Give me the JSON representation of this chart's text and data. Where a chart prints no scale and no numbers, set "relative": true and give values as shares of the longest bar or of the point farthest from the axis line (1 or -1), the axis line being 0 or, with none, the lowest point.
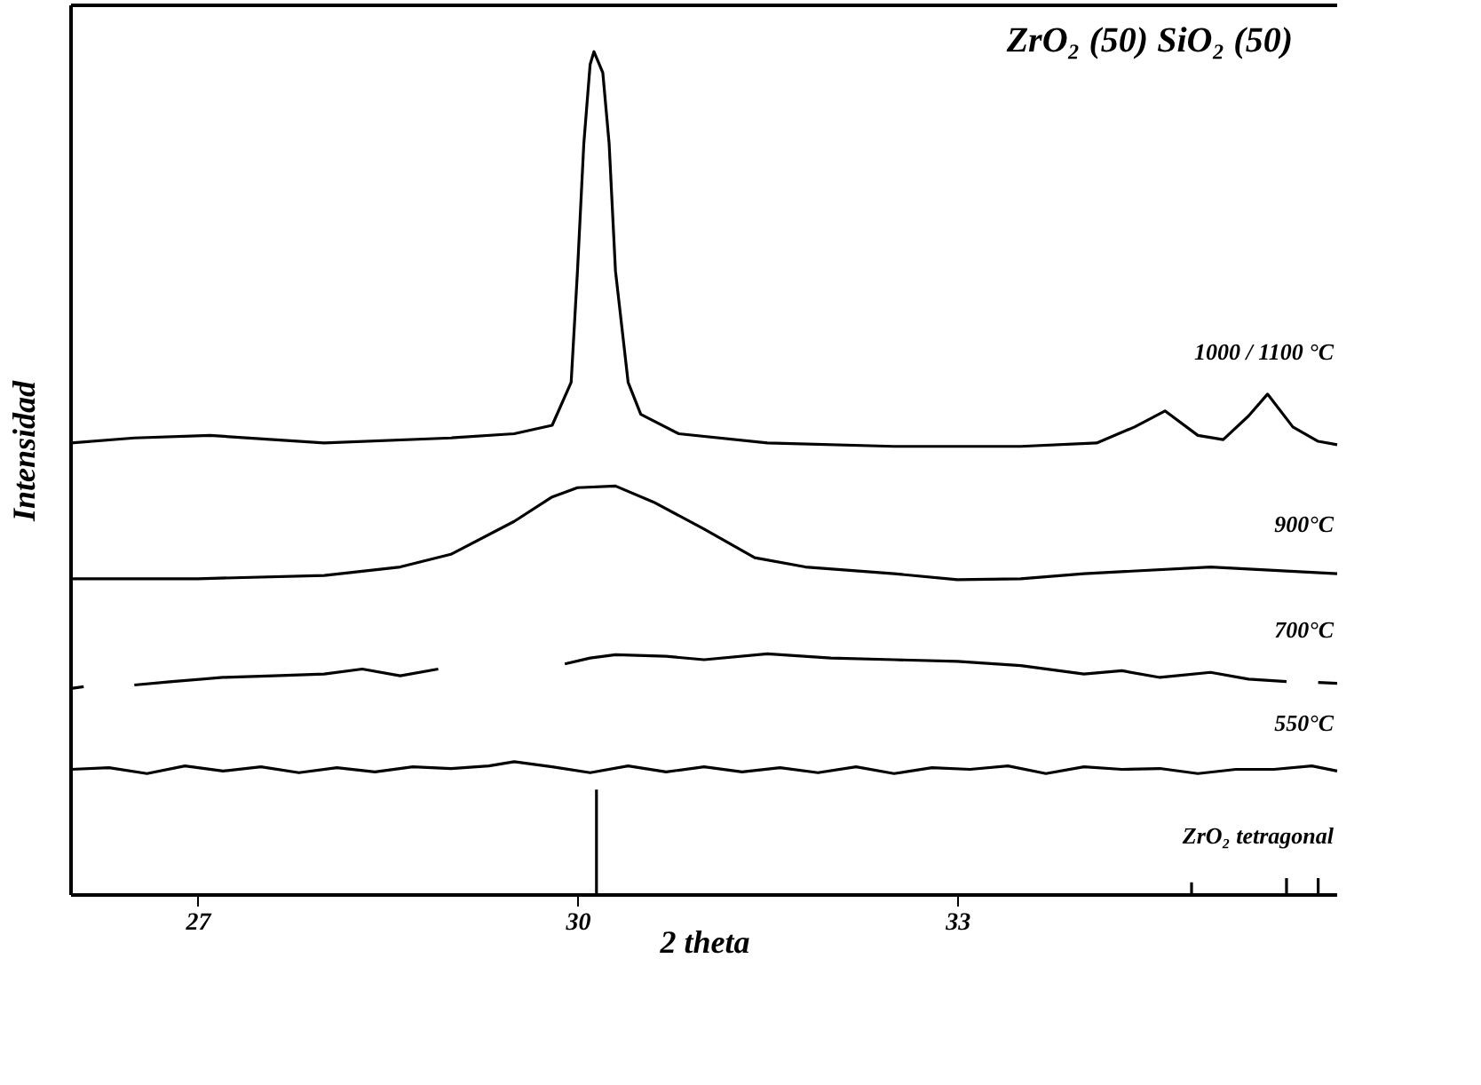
{
  "chart_data": {
    "type": "line",
    "title": "ZrO₂ (50) SiO₂ (50)",
    "xlabel": "2 theta",
    "ylabel": "Intensidad",
    "relative": true,
    "xlim": [
      26,
      36
    ],
    "xticks": [
      27,
      30,
      33
    ],
    "grid": false,
    "line_style": "solid",
    "marker": "none",
    "series": [
      {
        "name": "1000 / 1100 °C",
        "color": "#000000",
        "x": [
          26.0,
          26.5,
          27.1,
          28.0,
          29.0,
          29.5,
          29.8,
          29.95,
          30.0,
          30.05,
          30.1,
          30.13,
          30.2,
          30.25,
          30.3,
          30.4,
          30.5,
          30.8,
          31.5,
          32.5,
          33.5,
          34.1,
          34.4,
          34.64,
          34.9,
          35.1,
          35.3,
          35.45,
          35.65,
          35.85,
          36.0
        ],
        "values": [
          0.536,
          0.542,
          0.545,
          0.536,
          0.542,
          0.547,
          0.557,
          0.608,
          0.74,
          0.891,
          0.985,
          1.0,
          0.975,
          0.891,
          0.74,
          0.608,
          0.57,
          0.547,
          0.536,
          0.532,
          0.532,
          0.536,
          0.555,
          0.574,
          0.545,
          0.54,
          0.568,
          0.594,
          0.555,
          0.538,
          0.534
        ]
      },
      {
        "name": "900°C",
        "color": "#000000",
        "x": [
          26.0,
          27.0,
          28.0,
          28.6,
          29.0,
          29.5,
          29.8,
          30.0,
          30.3,
          30.6,
          31.0,
          31.4,
          31.8,
          32.5,
          33.0,
          33.5,
          34.0,
          35.0,
          35.5,
          36.0
        ],
        "values": [
          0.375,
          0.375,
          0.379,
          0.389,
          0.404,
          0.443,
          0.472,
          0.483,
          0.485,
          0.466,
          0.434,
          0.4,
          0.389,
          0.381,
          0.374,
          0.375,
          0.381,
          0.389,
          0.385,
          0.381
        ]
      },
      {
        "name": "700°C",
        "color": "#000000",
        "x": [
          26.0,
          26.1,
          26.3,
          26.5,
          26.8,
          27.2,
          27.6,
          28.0,
          28.3,
          28.6,
          28.9,
          29.2,
          29.9,
          30.1,
          30.3,
          30.7,
          31.0,
          31.5,
          32.0,
          32.5,
          33.0,
          33.5,
          34.0,
          34.3,
          34.6,
          35.0,
          35.3,
          35.6,
          35.7,
          35.85,
          36.0
        ],
        "values": [
          0.245,
          0.247,
          null,
          0.249,
          0.253,
          0.258,
          0.26,
          0.262,
          0.268,
          0.26,
          0.268,
          null,
          0.274,
          0.281,
          0.285,
          0.283,
          0.279,
          0.286,
          0.281,
          0.279,
          0.277,
          0.272,
          0.262,
          0.266,
          0.258,
          0.264,
          0.256,
          0.253,
          null,
          0.252,
          0.251
        ]
      },
      {
        "name": "550°C",
        "color": "#000000",
        "x": [
          26.0,
          26.3,
          26.6,
          26.9,
          27.2,
          27.5,
          27.8,
          28.1,
          28.4,
          28.7,
          29.0,
          29.3,
          29.5,
          29.8,
          30.1,
          30.4,
          30.7,
          31.0,
          31.3,
          31.6,
          31.9,
          32.2,
          32.5,
          32.8,
          33.1,
          33.4,
          33.7,
          34.0,
          34.3,
          34.6,
          34.9,
          35.2,
          35.5,
          35.8,
          36.0
        ],
        "values": [
          0.149,
          0.151,
          0.144,
          0.153,
          0.147,
          0.152,
          0.145,
          0.151,
          0.146,
          0.152,
          0.15,
          0.153,
          0.158,
          0.152,
          0.145,
          0.153,
          0.146,
          0.152,
          0.146,
          0.151,
          0.145,
          0.152,
          0.144,
          0.151,
          0.149,
          0.153,
          0.144,
          0.152,
          0.149,
          0.15,
          0.144,
          0.149,
          0.149,
          0.153,
          0.147
        ]
      },
      {
        "name": "ZrO₂ tetragonal",
        "type": "bar",
        "color": "#000000",
        "x": [
          30.15,
          34.85,
          35.6,
          35.85
        ],
        "values": [
          0.125,
          0.015,
          0.02,
          0.02
        ]
      }
    ]
  }
}
